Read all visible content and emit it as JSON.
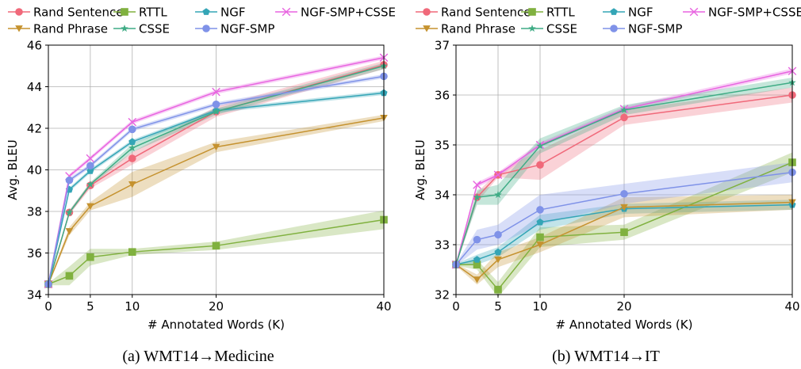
{
  "chart_data": [
    {
      "type": "line",
      "caption": "(a) WMT14→Medicine",
      "xlabel": "# Annotated Words (K)",
      "ylabel": "Avg. BLEU",
      "xlim": [
        0,
        40
      ],
      "ylim": [
        34,
        46
      ],
      "xticks": [
        0,
        5,
        10,
        20,
        40
      ],
      "yticks": [
        34,
        36,
        38,
        40,
        42,
        44,
        46
      ],
      "grid": true,
      "legend": "top",
      "x": [
        0,
        2.5,
        5,
        10,
        20,
        40
      ],
      "series": [
        {
          "name": "Rand Sentence",
          "values": [
            34.5,
            37.95,
            39.25,
            40.55,
            42.8,
            45.05
          ],
          "band": [
            0.05,
            0.1,
            0.15,
            0.3,
            0.25,
            0.2
          ],
          "color": "#f0697a",
          "marker": "circle"
        },
        {
          "name": "RTTL",
          "values": [
            34.5,
            34.9,
            35.8,
            36.05,
            36.35,
            37.6
          ],
          "band": [
            0.05,
            0.45,
            0.4,
            0.15,
            0.2,
            0.45
          ],
          "color": "#80b13f",
          "marker": "square"
        },
        {
          "name": "NGF",
          "values": [
            34.5,
            39.05,
            39.95,
            41.35,
            42.85,
            43.7
          ],
          "band": [
            0.05,
            0.1,
            0.1,
            0.1,
            0.1,
            0.1
          ],
          "color": "#34a5b6",
          "marker": "pentagon"
        },
        {
          "name": "NGF-SMP+CSSE",
          "values": [
            34.5,
            39.7,
            40.55,
            42.3,
            43.75,
            45.4
          ],
          "band": [
            0.05,
            0.1,
            0.1,
            0.1,
            0.1,
            0.1
          ],
          "color": "#e864e0",
          "marker": "x"
        },
        {
          "name": "Rand Phrase",
          "values": [
            34.5,
            37.05,
            38.25,
            39.3,
            41.1,
            42.5
          ],
          "band": [
            0.05,
            0.2,
            0.2,
            0.6,
            0.25,
            0.15
          ],
          "color": "#c5922f",
          "marker": "triangle-down"
        },
        {
          "name": "CSSE",
          "values": [
            34.5,
            37.95,
            39.3,
            41.05,
            42.8,
            45.0
          ],
          "band": [
            0.05,
            0.1,
            0.1,
            0.2,
            0.15,
            0.15
          ],
          "color": "#3fac85",
          "marker": "star"
        },
        {
          "name": "NGF-SMP",
          "values": [
            34.5,
            39.5,
            40.2,
            41.95,
            43.15,
            44.5
          ],
          "band": [
            0.05,
            0.1,
            0.1,
            0.1,
            0.1,
            0.1
          ],
          "color": "#7f92e8",
          "marker": "circle"
        }
      ]
    },
    {
      "type": "line",
      "caption": "(b) WMT14→IT",
      "xlabel": "# Annotated Words (K)",
      "ylabel": "Avg. BLEU",
      "xlim": [
        0,
        40
      ],
      "ylim": [
        32,
        37
      ],
      "xticks": [
        0,
        5,
        10,
        20,
        40
      ],
      "yticks": [
        32,
        33,
        34,
        35,
        36,
        37
      ],
      "grid": true,
      "legend": "top",
      "x": [
        0,
        2.5,
        5,
        10,
        20,
        40
      ],
      "series": [
        {
          "name": "Rand Sentence",
          "values": [
            32.6,
            33.95,
            34.4,
            34.6,
            35.55,
            36.0
          ],
          "band": [
            0.02,
            0.1,
            0.05,
            0.3,
            0.15,
            0.15
          ],
          "color": "#f0697a",
          "marker": "circle"
        },
        {
          "name": "RTTL",
          "values": [
            32.6,
            32.6,
            32.1,
            33.15,
            33.25,
            34.65
          ],
          "band": [
            0.02,
            0.1,
            0.15,
            0.2,
            0.15,
            0.2
          ],
          "color": "#80b13f",
          "marker": "square"
        },
        {
          "name": "NGF",
          "values": [
            32.6,
            32.7,
            32.85,
            33.45,
            33.72,
            33.8
          ],
          "band": [
            0.02,
            0.1,
            0.1,
            0.15,
            0.1,
            0.1
          ],
          "color": "#34a5b6",
          "marker": "pentagon"
        },
        {
          "name": "NGF-SMP+CSSE",
          "values": [
            32.6,
            34.2,
            34.4,
            35.0,
            35.72,
            36.48
          ],
          "band": [
            0.02,
            0.05,
            0.05,
            0.05,
            0.05,
            0.05
          ],
          "color": "#e864e0",
          "marker": "x"
        },
        {
          "name": "Rand Phrase",
          "values": [
            32.6,
            32.3,
            32.7,
            33.0,
            33.75,
            33.85
          ],
          "band": [
            0.02,
            0.1,
            0.15,
            0.15,
            0.2,
            0.15
          ],
          "color": "#c5922f",
          "marker": "triangle-down"
        },
        {
          "name": "CSSE",
          "values": [
            32.6,
            33.95,
            34.0,
            34.98,
            35.7,
            36.25
          ],
          "band": [
            0.02,
            0.15,
            0.2,
            0.15,
            0.1,
            0.1
          ],
          "color": "#3fac85",
          "marker": "star"
        },
        {
          "name": "NGF-SMP",
          "values": [
            32.6,
            33.1,
            33.2,
            33.7,
            34.02,
            34.45
          ],
          "band": [
            0.02,
            0.2,
            0.2,
            0.3,
            0.2,
            0.2
          ],
          "color": "#7f92e8",
          "marker": "circle"
        }
      ]
    }
  ]
}
